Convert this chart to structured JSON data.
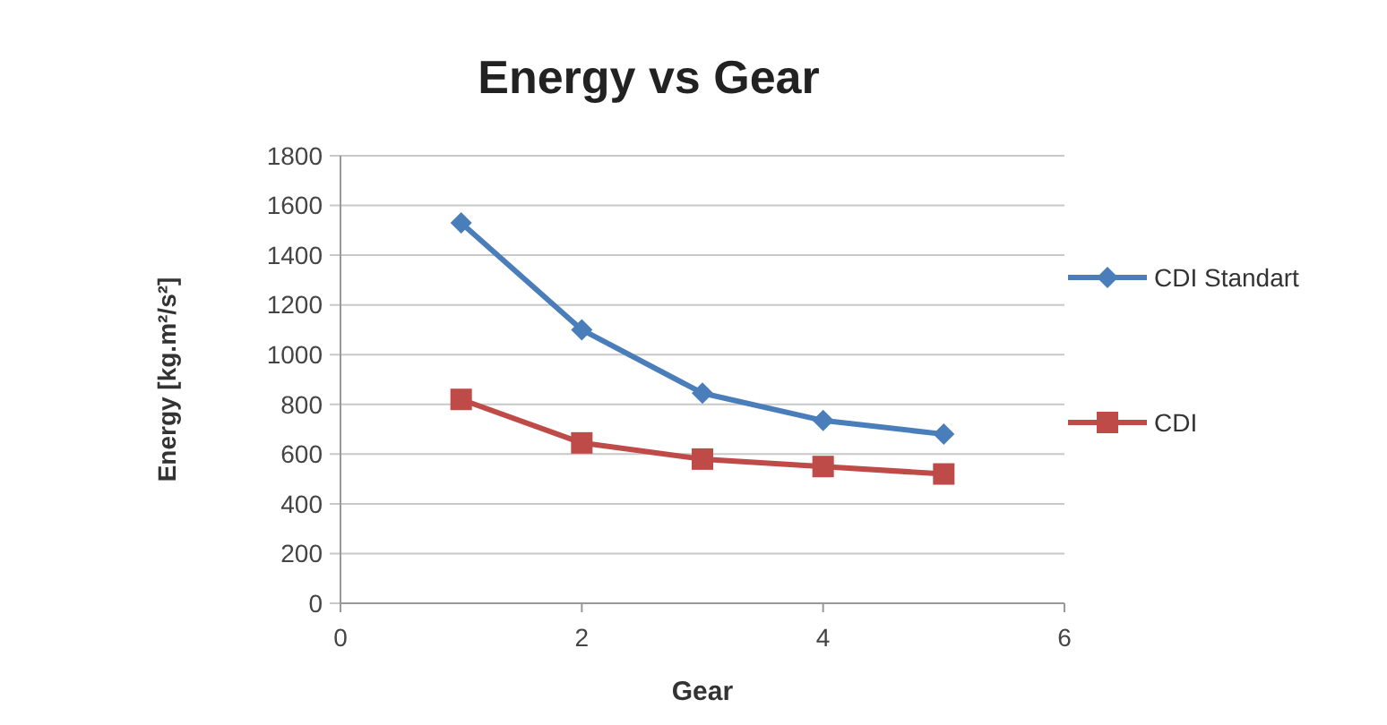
{
  "chart_data": {
    "type": "line",
    "title": "Energy vs Gear",
    "xlabel": "Gear",
    "ylabel": "Energy [kg.m²/s²]",
    "x": [
      1,
      2,
      3,
      4,
      5
    ],
    "xlim": [
      0,
      6
    ],
    "xticks": [
      0,
      2,
      4,
      6
    ],
    "ylim": [
      0,
      1800
    ],
    "yticks": [
      0,
      200,
      400,
      600,
      800,
      1000,
      1200,
      1400,
      1600,
      1800
    ],
    "grid": "y",
    "legend": "right",
    "series": [
      {
        "name": "CDI Standart",
        "color": "#4a7ebb",
        "marker": "diamond",
        "values": [
          1530,
          1100,
          845,
          735,
          680
        ]
      },
      {
        "name": "CDI",
        "color": "#be4b48",
        "marker": "square",
        "values": [
          820,
          645,
          580,
          550,
          520
        ]
      }
    ]
  }
}
